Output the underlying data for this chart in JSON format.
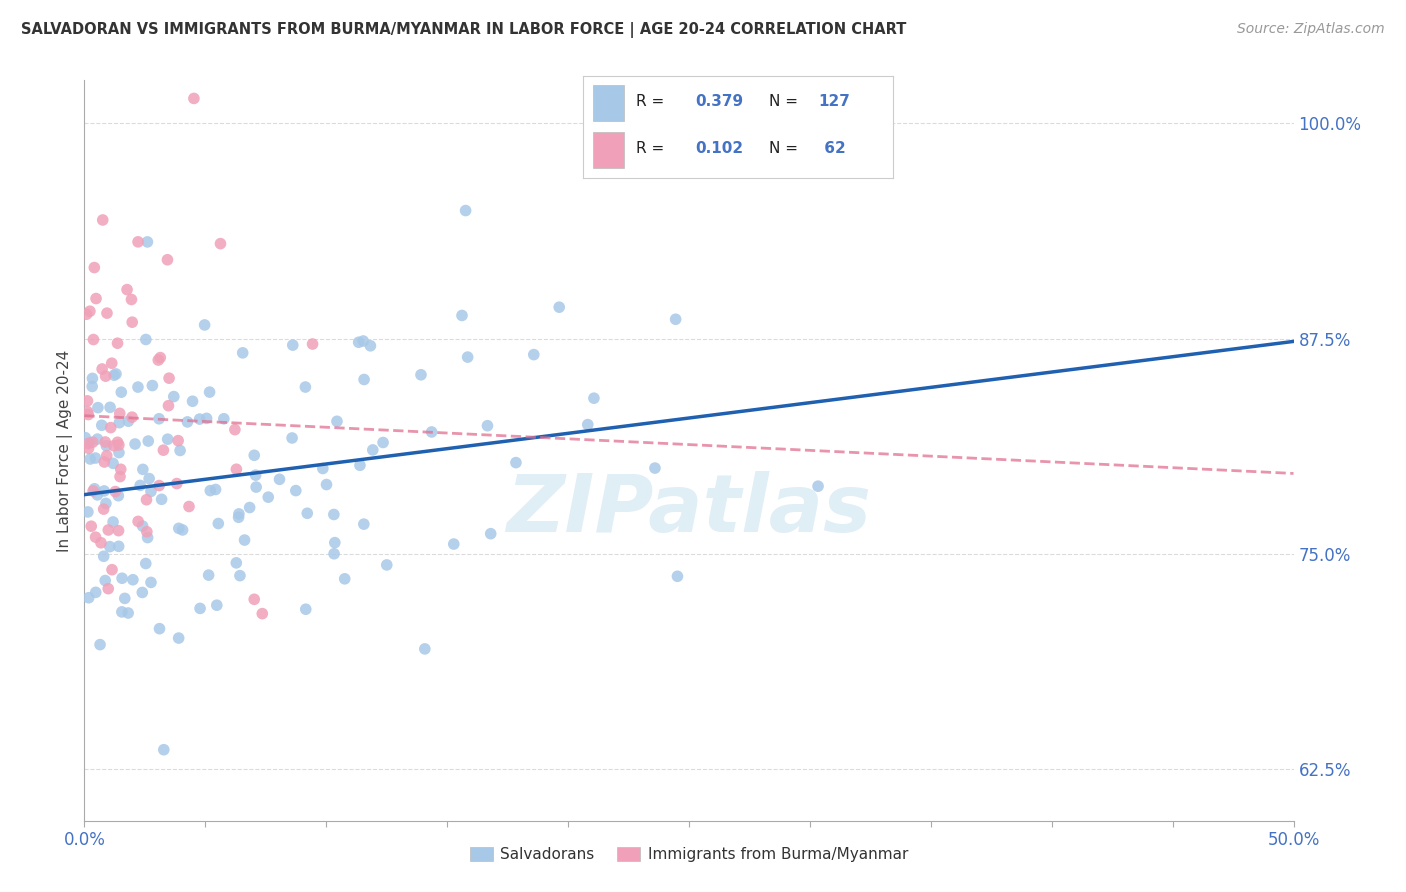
{
  "title": "SALVADORAN VS IMMIGRANTS FROM BURMA/MYANMAR IN LABOR FORCE | AGE 20-24 CORRELATION CHART",
  "source": "Source: ZipAtlas.com",
  "ylabel": "In Labor Force | Age 20-24",
  "xlim": [
    0.0,
    0.5
  ],
  "ylim": [
    0.595,
    1.025
  ],
  "ytick_right_labels": [
    "100.0%",
    "87.5%",
    "75.0%",
    "62.5%"
  ],
  "ytick_right_values": [
    1.0,
    0.875,
    0.75,
    0.625
  ],
  "blue_color": "#A8C8E8",
  "pink_color": "#F0A0B8",
  "blue_line_color": "#2060B0",
  "pink_line_color": "#E07090",
  "R_blue": 0.379,
  "N_blue": 127,
  "R_pink": 0.102,
  "N_pink": 62,
  "watermark": "ZIPatlas",
  "background_color": "#FFFFFF",
  "grid_color": "#CCCCCC"
}
